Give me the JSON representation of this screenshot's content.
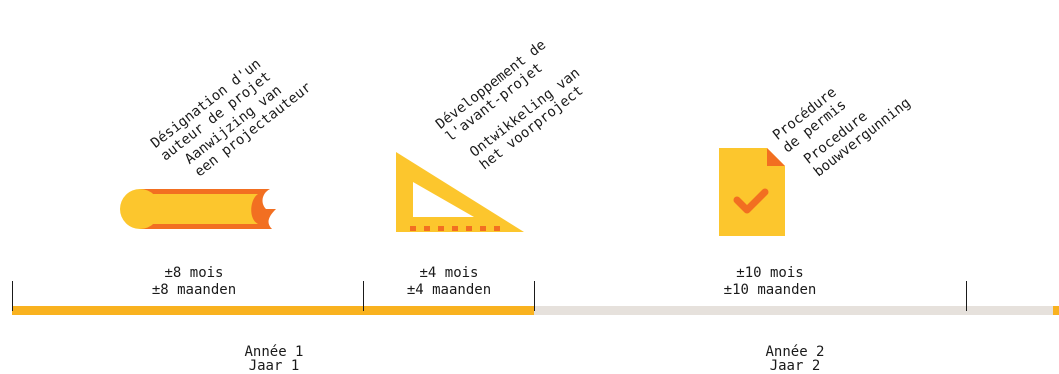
{
  "colors": {
    "accent": "#f9b21f",
    "accent_dark": "#f26f21",
    "track": "#e6e1dc",
    "icon_yellow": "#fcc62d"
  },
  "phases": [
    {
      "icon": "rolled-paper-icon",
      "label_fr_1": "Désignation d'un",
      "label_fr_2": "auteur de projet",
      "label_nl_1": "Aanwijzing van",
      "label_nl_2": "een projectauteur",
      "duration_fr": "±8 mois",
      "duration_nl": "±8 maanden"
    },
    {
      "icon": "set-square-icon",
      "label_fr_1": "Développement de",
      "label_fr_2": "l'avant-projet",
      "label_nl_1": "Ontwikkeling van",
      "label_nl_2": "het voorproject",
      "duration_fr": "±4 mois",
      "duration_nl": "±4 maanden"
    },
    {
      "icon": "approved-document-icon",
      "label_fr_1": "Procédure",
      "label_fr_2": "de permis",
      "label_nl_1": "Procedure",
      "label_nl_2": "bouwvergunning",
      "duration_fr": "±10 mois",
      "duration_nl": "±10 maanden"
    }
  ],
  "years": [
    {
      "fr": "Année 1",
      "nl": "Jaar 1"
    },
    {
      "fr": "Année 2",
      "nl": "Jaar 2"
    }
  ]
}
